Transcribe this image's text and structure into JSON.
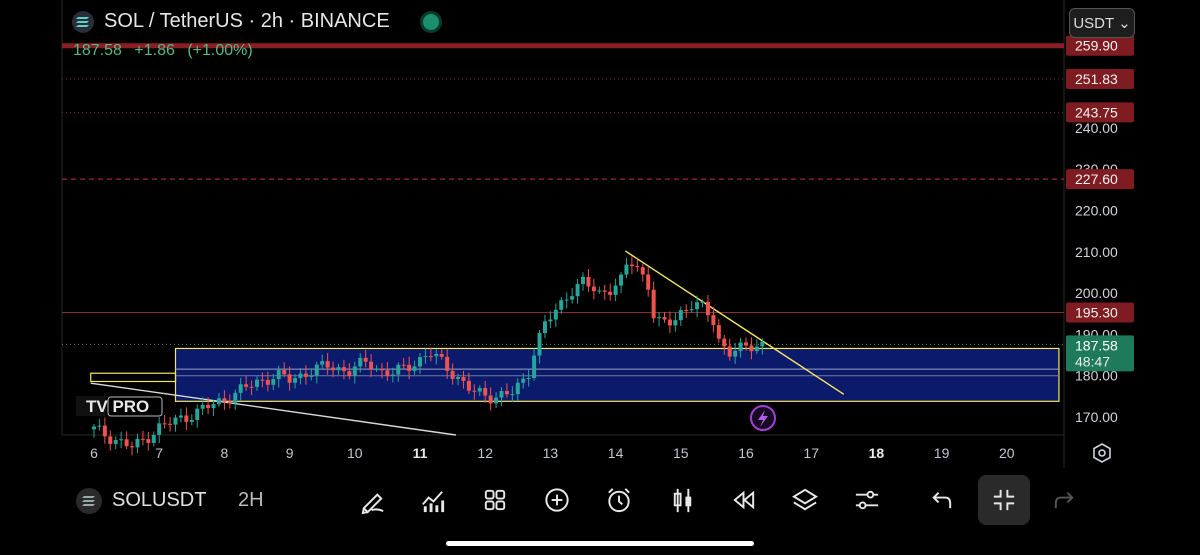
{
  "header": {
    "title": "SOL / TetherUS · 2h · BINANCE",
    "last_price": "187.58",
    "change": "+1.86",
    "change_pct": "(+1.00%)",
    "currency_button": "USDT ⌄"
  },
  "colors": {
    "up": "#26a69a",
    "down": "#ef5350",
    "level_red": "#8b1e24",
    "zone_blue": "#0c1a6b",
    "trendline_yellow": "#f5e663",
    "price_tag": "#1f7a5c"
  },
  "price_axis": {
    "ticks": [
      "240.00",
      "230.00",
      "220.00",
      "210.00",
      "200.00",
      "190.00",
      "180.00",
      "170.00"
    ],
    "tags": [
      {
        "label": "259.90",
        "price": 259.9,
        "kind": "red"
      },
      {
        "label": "251.83",
        "price": 251.83,
        "kind": "red"
      },
      {
        "label": "243.75",
        "price": 243.75,
        "kind": "red"
      },
      {
        "label": "227.60",
        "price": 227.6,
        "kind": "red"
      },
      {
        "label": "195.30",
        "price": 195.3,
        "kind": "red"
      }
    ],
    "current": {
      "price_label": "187.58",
      "countdown": "48:47",
      "price": 187.58
    }
  },
  "time_axis": {
    "labels": [
      {
        "label": "6",
        "bold": false
      },
      {
        "label": "7",
        "bold": false
      },
      {
        "label": "8",
        "bold": false
      },
      {
        "label": "9",
        "bold": false
      },
      {
        "label": "10",
        "bold": false
      },
      {
        "label": "11",
        "bold": true
      },
      {
        "label": "12",
        "bold": false
      },
      {
        "label": "13",
        "bold": false
      },
      {
        "label": "14",
        "bold": false
      },
      {
        "label": "15",
        "bold": false
      },
      {
        "label": "16",
        "bold": false
      },
      {
        "label": "17",
        "bold": false
      },
      {
        "label": "18",
        "bold": true
      },
      {
        "label": "19",
        "bold": false
      },
      {
        "label": "20",
        "bold": false
      }
    ]
  },
  "chart_data": {
    "type": "candlestick",
    "symbol": "SOL / TetherUS",
    "interval": "2h",
    "exchange": "BINANCE",
    "ylim": [
      165,
      262
    ],
    "x_range_days": [
      5.95,
      20.8
    ],
    "levels": [
      {
        "price": 259.9,
        "style": "solid-thick"
      },
      {
        "price": 251.83,
        "style": "dotted"
      },
      {
        "price": 243.75,
        "style": "dotted"
      },
      {
        "price": 227.6,
        "style": "dashed"
      },
      {
        "price": 195.3,
        "style": "solid"
      },
      {
        "price": 187.58,
        "style": "dotted-current"
      }
    ],
    "zones": [
      {
        "from_day": 7.25,
        "to_day": 20.8,
        "low": 173.8,
        "high": 186.6
      },
      {
        "from_day": 5.95,
        "to_day": 7.25,
        "low": 178.6,
        "high": 180.6
      }
    ],
    "trendlines": [
      {
        "from": [
          14.15,
          210.2
        ],
        "to": [
          17.5,
          175.5
        ],
        "color": "yellow"
      },
      {
        "from": [
          5.95,
          178.2
        ],
        "to": [
          11.55,
          165.0
        ],
        "color": "white"
      }
    ],
    "path": [
      [
        6.0,
        167.0
      ],
      [
        6.6,
        162.5
      ],
      [
        7.0,
        167.5
      ],
      [
        7.4,
        170.0
      ],
      [
        7.9,
        173.5
      ],
      [
        8.2,
        176.0
      ],
      [
        8.5,
        178.5
      ],
      [
        8.8,
        180.0
      ],
      [
        9.0,
        179.0
      ],
      [
        9.3,
        181.0
      ],
      [
        9.6,
        182.5
      ],
      [
        9.9,
        181.0
      ],
      [
        10.2,
        183.5
      ],
      [
        10.4,
        181.0
      ],
      [
        10.6,
        180.5
      ],
      [
        10.9,
        183.0
      ],
      [
        11.15,
        185.5
      ],
      [
        11.35,
        183.0
      ],
      [
        11.55,
        180.0
      ],
      [
        11.8,
        176.0
      ],
      [
        12.1,
        175.0
      ],
      [
        12.4,
        175.5
      ],
      [
        12.65,
        180.0
      ],
      [
        12.75,
        186.0
      ],
      [
        12.9,
        192.0
      ],
      [
        13.1,
        196.0
      ],
      [
        13.3,
        200.5
      ],
      [
        13.5,
        202.5
      ],
      [
        13.75,
        200.0
      ],
      [
        13.9,
        201.0
      ],
      [
        14.1,
        203.0
      ],
      [
        14.2,
        208.0
      ],
      [
        14.35,
        206.0
      ],
      [
        14.5,
        202.0
      ],
      [
        14.55,
        195.5
      ],
      [
        14.7,
        192.0
      ],
      [
        14.85,
        193.0
      ],
      [
        15.0,
        195.5
      ],
      [
        15.2,
        197.5
      ],
      [
        15.35,
        196.0
      ],
      [
        15.5,
        193.5
      ],
      [
        15.6,
        188.0
      ],
      [
        15.75,
        185.5
      ],
      [
        15.95,
        186.5
      ],
      [
        16.1,
        187.5
      ],
      [
        16.2,
        187.8
      ],
      [
        16.3,
        187.58
      ]
    ]
  },
  "toolbar": {
    "symbol": "SOLUSDT",
    "timeframe": "2H",
    "icons": [
      {
        "name": "draw-icon",
        "x": 352
      },
      {
        "name": "indicators-icon",
        "x": 412
      },
      {
        "name": "templates-grid-icon",
        "x": 474
      },
      {
        "name": "add-icon",
        "x": 536
      },
      {
        "name": "alert-clock-icon",
        "x": 598
      },
      {
        "name": "candles-icon",
        "x": 662
      },
      {
        "name": "replay-icon",
        "x": 722
      },
      {
        "name": "layers-icon",
        "x": 784
      },
      {
        "name": "settings-sliders-icon",
        "x": 846
      },
      {
        "name": "undo-icon",
        "x": 920
      },
      {
        "name": "collapse-icon",
        "x": 982,
        "active": true
      },
      {
        "name": "redo-icon",
        "x": 1044
      }
    ]
  },
  "watermark": "TV PRO"
}
